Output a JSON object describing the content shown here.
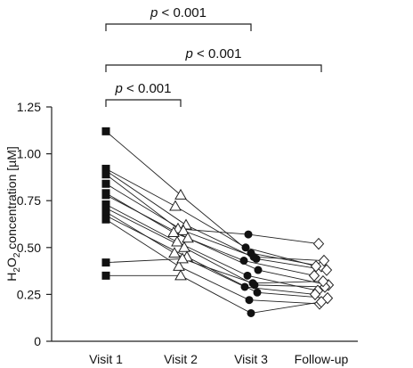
{
  "chart_data": {
    "type": "line",
    "ylabel": "H2O2 concentration [µM]",
    "ylabel_parts": {
      "main": "H",
      "sub1": "2",
      "mid": "O",
      "sub2": "2",
      "rest": " concentration [µM]"
    },
    "ylim": [
      0,
      1.25
    ],
    "yticks": [
      0,
      0.25,
      0.5,
      0.75,
      1.0,
      1.25
    ],
    "ytick_labels": [
      "0",
      "0.25",
      "0.50",
      "0.75",
      "1.00",
      "1.25"
    ],
    "categories": [
      "Visit 1",
      "Visit 2",
      "Visit 3",
      "Follow-up"
    ],
    "markers": [
      "filled-square",
      "open-triangle",
      "filled-circle",
      "open-diamond"
    ],
    "grid": false,
    "subjects": [
      [
        1.12,
        0.78,
        0.47,
        0.4
      ],
      [
        0.92,
        0.72,
        0.5,
        0.4
      ],
      [
        0.91,
        0.62,
        0.44,
        0.38
      ],
      [
        0.89,
        0.6,
        0.57,
        0.52
      ],
      [
        0.84,
        0.59,
        0.45,
        0.43
      ],
      [
        0.79,
        0.58,
        0.43,
        0.35
      ],
      [
        0.78,
        0.55,
        0.38,
        0.3
      ],
      [
        0.73,
        0.53,
        0.35,
        0.27
      ],
      [
        0.71,
        0.5,
        0.3,
        0.29
      ],
      [
        0.69,
        0.47,
        0.29,
        0.25
      ],
      [
        0.67,
        0.45,
        0.26,
        0.23
      ],
      [
        0.65,
        0.4,
        0.22,
        0.2
      ],
      [
        0.42,
        0.44,
        0.31,
        0.32
      ],
      [
        0.35,
        0.35,
        0.15,
        0.21
      ]
    ],
    "significance": [
      {
        "from": 0,
        "to": 2,
        "p_text": "< 0.001"
      },
      {
        "from": 0,
        "to": 3,
        "p_text": "< 0.001"
      },
      {
        "from": 0,
        "to": 1,
        "p_text": "< 0.001"
      }
    ],
    "p_symbol": "p"
  }
}
